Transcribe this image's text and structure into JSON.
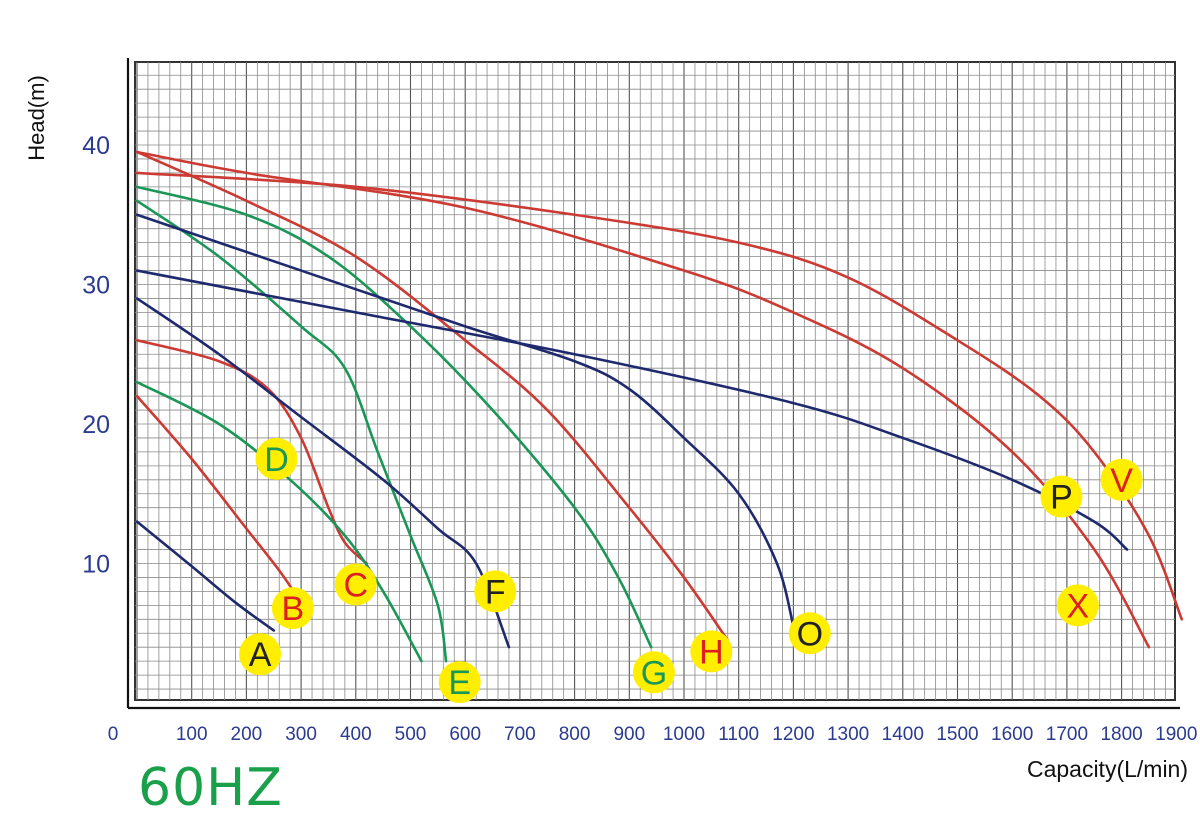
{
  "chart_data": {
    "type": "line",
    "title": "",
    "xlabel": "Capacity(L/min)",
    "ylabel": "Head(m)",
    "xlim": [
      0,
      1900
    ],
    "ylim": [
      0,
      46
    ],
    "x_ticks": [
      0,
      100,
      200,
      300,
      400,
      500,
      600,
      700,
      800,
      900,
      1000,
      1100,
      1200,
      1300,
      1400,
      1500,
      1600,
      1700,
      1800,
      1900
    ],
    "y_ticks": [
      10,
      20,
      30,
      40
    ],
    "grid": true,
    "minor_grid_step": {
      "x": 20,
      "y": 1
    },
    "frequency_label": "60HZ",
    "colors": {
      "blue": "#1f2a6e",
      "red": "#cc3a34",
      "green": "#1a9657",
      "marker": "#ffee00",
      "axis_tick": "#2b3b8f",
      "freq": "#1aa04a"
    },
    "series": [
      {
        "name": "A",
        "color": "blue",
        "label_color": "#222222",
        "label_at": [
          225,
          3.5
        ],
        "points": [
          [
            0,
            13
          ],
          [
            100,
            9.8
          ],
          [
            180,
            7.2
          ],
          [
            250,
            5.2
          ]
        ]
      },
      {
        "name": "B",
        "color": "red",
        "label_color": "#dd1f1f",
        "label_at": [
          285,
          6.8
        ],
        "points": [
          [
            0,
            22
          ],
          [
            100,
            17.5
          ],
          [
            200,
            12.5
          ],
          [
            260,
            9.5
          ],
          [
            300,
            7.2
          ]
        ]
      },
      {
        "name": "C",
        "color": "red",
        "label_color": "#dd1f1f",
        "label_at": [
          400,
          8.5
        ],
        "points": [
          [
            0,
            26
          ],
          [
            150,
            24.5
          ],
          [
            240,
            22.5
          ],
          [
            300,
            19
          ],
          [
            350,
            14
          ],
          [
            380,
            11.5
          ],
          [
            420,
            10
          ]
        ]
      },
      {
        "name": "D",
        "color": "green",
        "label_color": "#1a9657",
        "label_at": [
          255,
          17.5
        ],
        "points": [
          [
            0,
            23
          ],
          [
            150,
            20
          ],
          [
            280,
            16
          ],
          [
            380,
            12
          ],
          [
            450,
            8
          ],
          [
            520,
            3
          ]
        ]
      },
      {
        "name": "E",
        "color": "green",
        "label_color": "#1a9657",
        "label_at": [
          590,
          1.5
        ],
        "points": [
          [
            0,
            36
          ],
          [
            150,
            32
          ],
          [
            300,
            27
          ],
          [
            380,
            24
          ],
          [
            440,
            18
          ],
          [
            500,
            12
          ],
          [
            550,
            7
          ],
          [
            565,
            3
          ]
        ]
      },
      {
        "name": "F",
        "color": "blue",
        "label_color": "#222222",
        "label_at": [
          655,
          8
        ],
        "points": [
          [
            0,
            29
          ],
          [
            150,
            25
          ],
          [
            300,
            20.5
          ],
          [
            450,
            16
          ],
          [
            550,
            12.5
          ],
          [
            620,
            10
          ],
          [
            680,
            4
          ]
        ]
      },
      {
        "name": "G",
        "color": "green",
        "label_color": "#1a9657",
        "label_at": [
          945,
          2.2
        ],
        "points": [
          [
            0,
            37
          ],
          [
            200,
            35
          ],
          [
            350,
            32
          ],
          [
            500,
            27
          ],
          [
            650,
            21
          ],
          [
            800,
            14
          ],
          [
            880,
            9
          ],
          [
            940,
            4
          ]
        ]
      },
      {
        "name": "H",
        "color": "red",
        "label_color": "#dd1f1f",
        "label_at": [
          1050,
          3.7
        ],
        "points": [
          [
            0,
            39.5
          ],
          [
            200,
            36
          ],
          [
            400,
            32
          ],
          [
            600,
            26
          ],
          [
            750,
            21
          ],
          [
            900,
            14
          ],
          [
            1000,
            9
          ],
          [
            1080,
            4.5
          ]
        ]
      },
      {
        "name": "O",
        "color": "blue",
        "label_color": "#222222",
        "label_at": [
          1230,
          5
        ],
        "points": [
          [
            0,
            35
          ],
          [
            300,
            31
          ],
          [
            600,
            27
          ],
          [
            800,
            24.5
          ],
          [
            900,
            22.5
          ],
          [
            1000,
            19
          ],
          [
            1100,
            15
          ],
          [
            1170,
            10
          ],
          [
            1200,
            5.5
          ]
        ]
      },
      {
        "name": "P",
        "color": "blue",
        "label_color": "#222222",
        "label_at": [
          1690,
          14.8
        ],
        "points": [
          [
            0,
            31
          ],
          [
            400,
            28
          ],
          [
            800,
            25
          ],
          [
            1200,
            21.5
          ],
          [
            1400,
            19
          ],
          [
            1600,
            16
          ],
          [
            1750,
            13
          ],
          [
            1810,
            11
          ]
        ]
      },
      {
        "name": "V",
        "color": "red",
        "label_color": "#dd1f1f",
        "label_at": [
          1800,
          16
        ],
        "points": [
          [
            0,
            38
          ],
          [
            400,
            37
          ],
          [
            800,
            35
          ],
          [
            1100,
            33
          ],
          [
            1300,
            30.5
          ],
          [
            1500,
            26
          ],
          [
            1650,
            22
          ],
          [
            1750,
            18
          ],
          [
            1850,
            12
          ],
          [
            1910,
            6
          ]
        ]
      },
      {
        "name": "X",
        "color": "red",
        "label_color": "#dd1f1f",
        "label_at": [
          1720,
          7
        ],
        "points": [
          [
            0,
            39.5
          ],
          [
            200,
            38
          ],
          [
            600,
            35.5
          ],
          [
            1000,
            31
          ],
          [
            1200,
            28
          ],
          [
            1400,
            24
          ],
          [
            1600,
            18
          ],
          [
            1750,
            11
          ],
          [
            1850,
            4
          ]
        ]
      }
    ]
  }
}
